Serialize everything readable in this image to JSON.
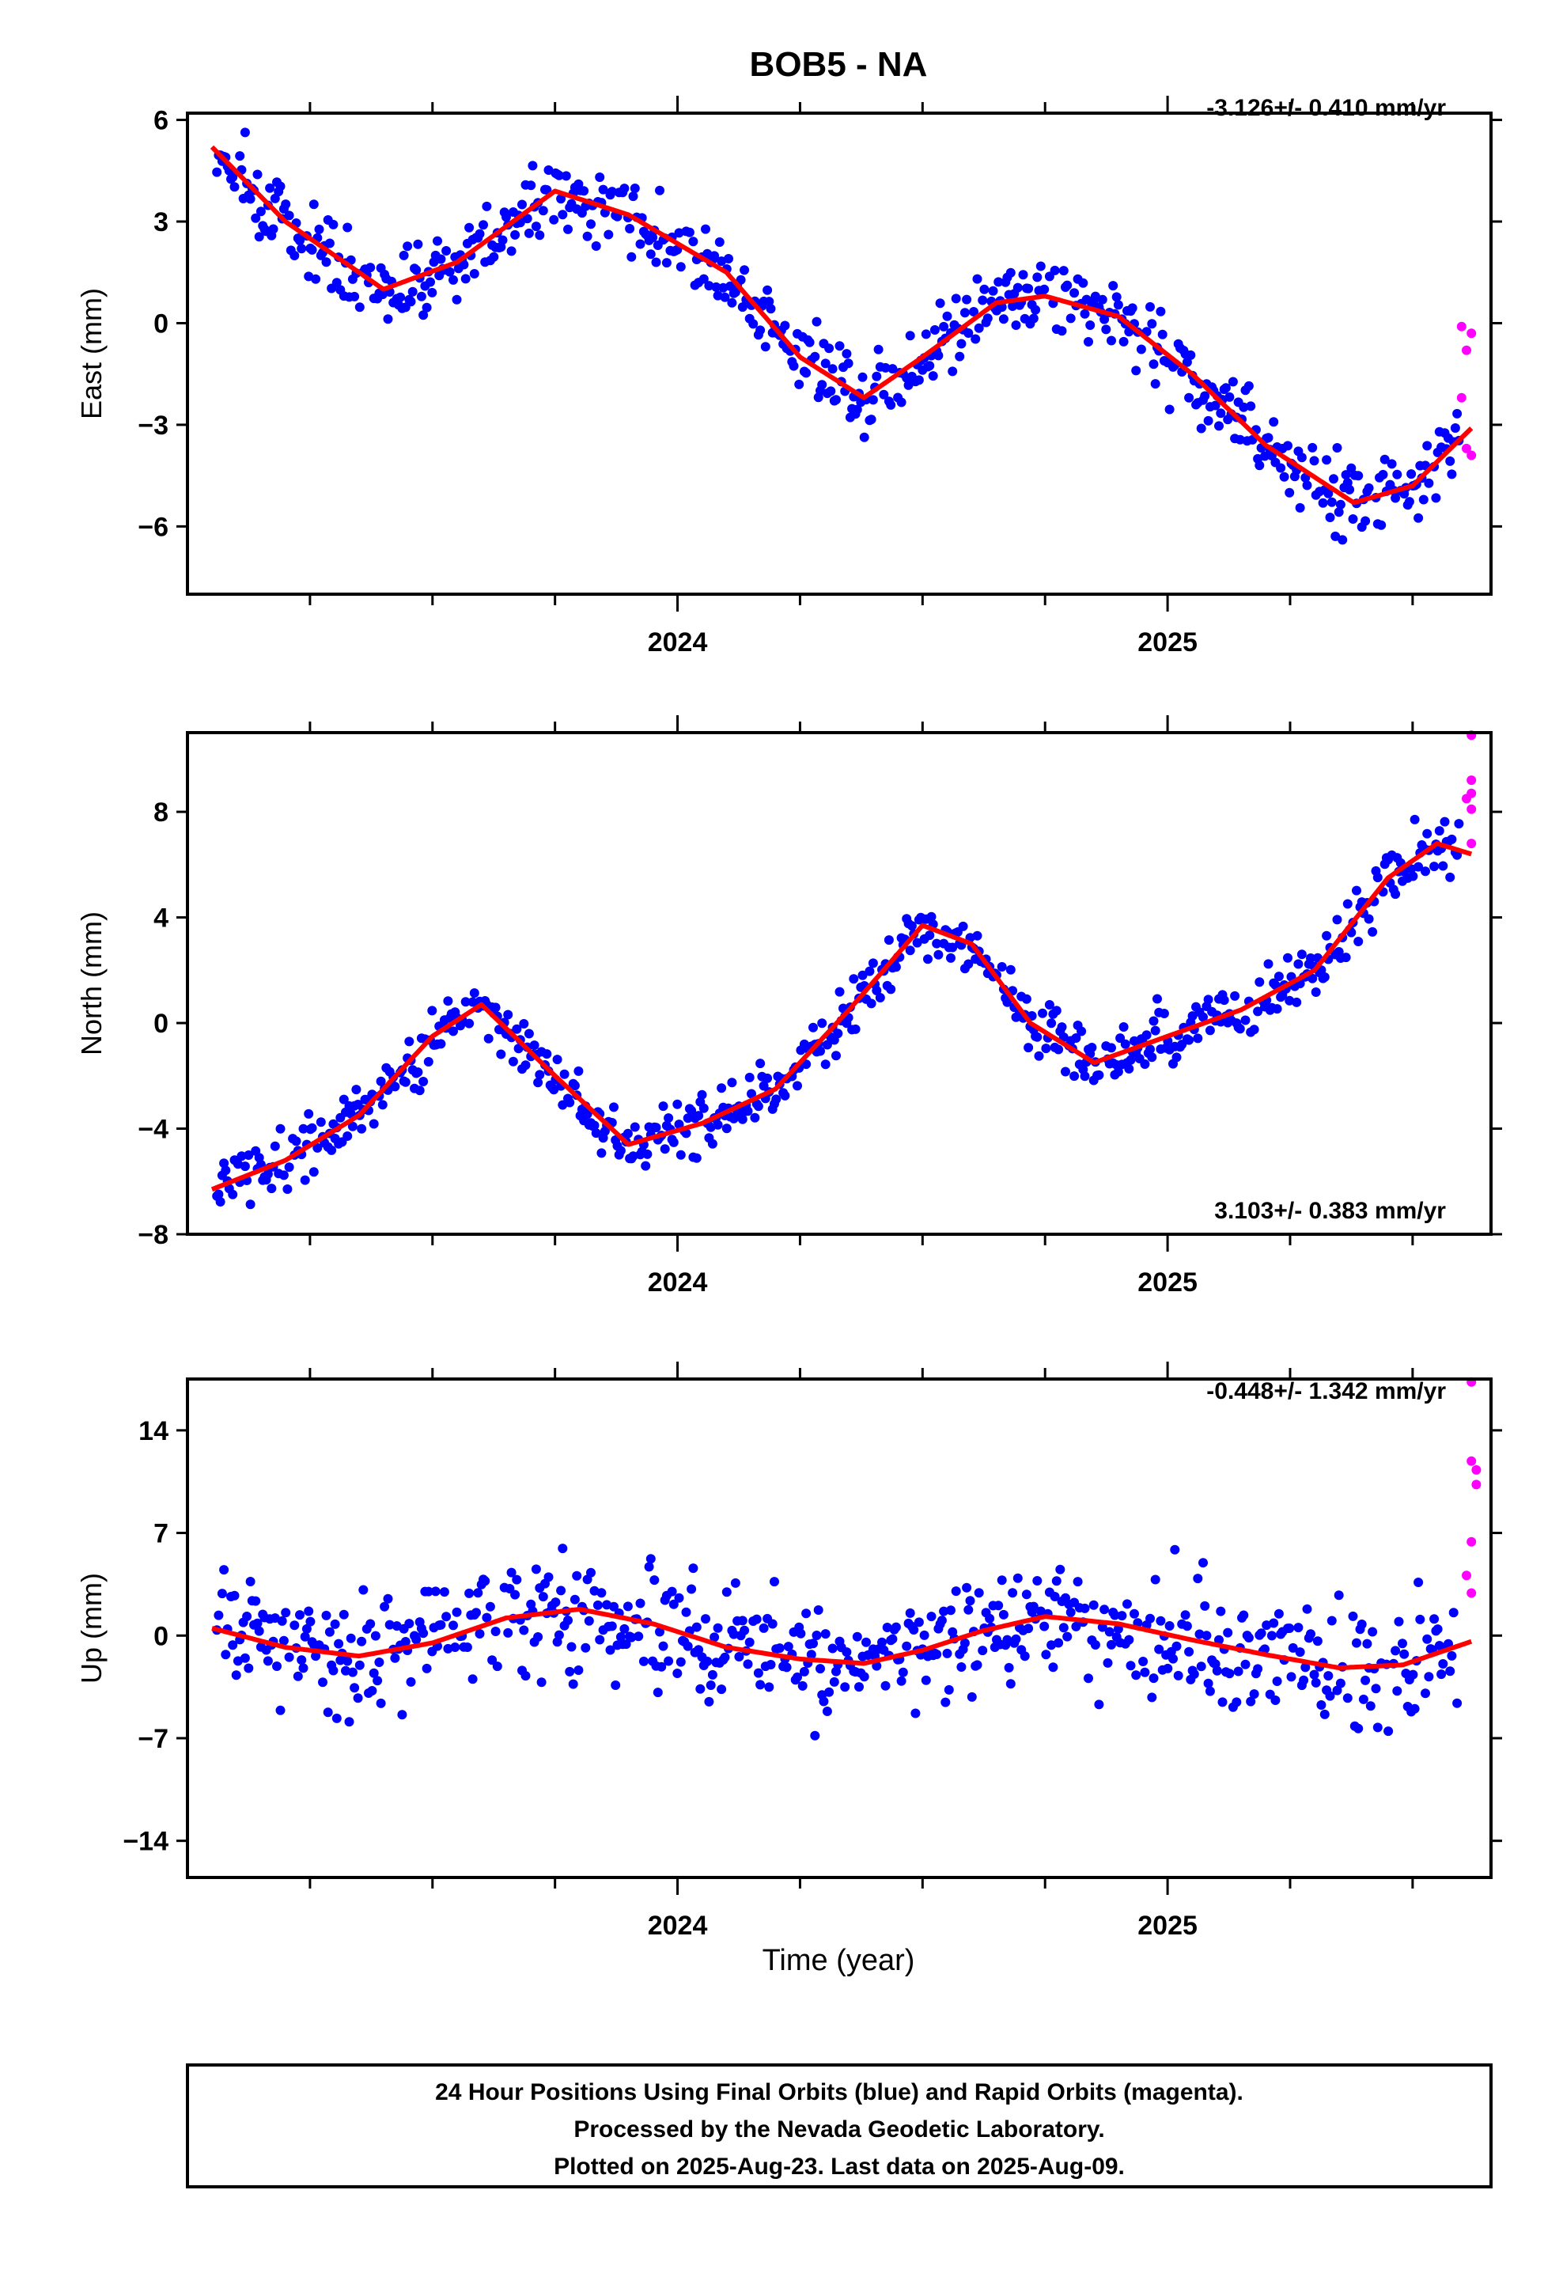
{
  "figure": {
    "title": "BOB5 - NA",
    "footer": [
      "24 Hour Positions Using Final Orbits (blue) and Rapid Orbits (magenta).",
      "Processed by the Nevada Geodetic Laboratory.",
      "Plotted on 2025-Aug-23. Last data on 2025-Aug-09."
    ],
    "xlabel": "Time (year)"
  },
  "colors": {
    "final": "#0000ff",
    "rapid": "#ff00ff",
    "model": "#ff0000",
    "frame": "#000000"
  },
  "chart_data": [
    {
      "type": "scatter",
      "ylabel": "East (mm)",
      "rate_label": "-3.126+/- 0.410 mm/yr",
      "xlim": [
        2023.0,
        2025.66
      ],
      "ylim": [
        -8.0,
        6.2
      ],
      "yticks": [
        -6,
        -3,
        0,
        3,
        6
      ],
      "xticks": [
        "2024",
        "2025"
      ],
      "model": {
        "x": [
          2023.05,
          2023.2,
          2023.4,
          2023.55,
          2023.75,
          2023.9,
          2024.1,
          2024.25,
          2024.38,
          2024.5,
          2024.65,
          2024.75,
          2024.9,
          2025.05,
          2025.2,
          2025.38,
          2025.5,
          2025.62
        ],
        "y": [
          5.2,
          3.0,
          1.0,
          1.8,
          3.9,
          3.2,
          1.5,
          -1.0,
          -2.2,
          -1.0,
          0.6,
          0.8,
          0.2,
          -1.5,
          -3.6,
          -5.3,
          -4.8,
          -3.1
        ]
      },
      "rapid": {
        "x": [
          2025.6,
          2025.61,
          2025.62,
          2025.6,
          2025.61,
          2025.62
        ],
        "y": [
          -0.1,
          -0.8,
          -0.3,
          -2.2,
          -3.7,
          -3.9
        ]
      }
    },
    {
      "type": "scatter",
      "ylabel": "North (mm)",
      "rate_label": "3.103+/- 0.383 mm/yr",
      "xlim": [
        2023.0,
        2025.66
      ],
      "ylim": [
        -8.0,
        11.0
      ],
      "yticks": [
        -8,
        -4,
        0,
        4,
        8
      ],
      "xticks": [
        "2024",
        "2025"
      ],
      "model": {
        "x": [
          2023.05,
          2023.2,
          2023.35,
          2023.5,
          2023.6,
          2023.75,
          2023.9,
          2024.05,
          2024.2,
          2024.35,
          2024.5,
          2024.6,
          2024.72,
          2024.85,
          2025.0,
          2025.15,
          2025.3,
          2025.45,
          2025.55,
          2025.62
        ],
        "y": [
          -6.3,
          -5.2,
          -3.5,
          -0.5,
          0.7,
          -2.0,
          -4.6,
          -3.8,
          -2.5,
          0.5,
          3.7,
          3.0,
          0.0,
          -1.5,
          -0.5,
          0.5,
          2.0,
          5.5,
          6.8,
          6.4
        ]
      },
      "rapid": {
        "x": [
          2025.62,
          2025.62,
          2025.62,
          2025.61,
          2025.62,
          2025.62
        ],
        "y": [
          10.9,
          9.2,
          8.7,
          8.5,
          8.1,
          6.8
        ]
      }
    },
    {
      "type": "scatter",
      "ylabel": "Up (mm)",
      "rate_label": "-0.448+/- 1.342 mm/yr",
      "xlim": [
        2023.0,
        2025.66
      ],
      "ylim": [
        -16.5,
        17.5
      ],
      "yticks": [
        -14,
        -7,
        0,
        7,
        14
      ],
      "xticks": [
        "2024",
        "2025"
      ],
      "model": {
        "x": [
          2023.05,
          2023.2,
          2023.35,
          2023.5,
          2023.65,
          2023.8,
          2023.95,
          2024.1,
          2024.25,
          2024.38,
          2024.5,
          2024.62,
          2024.75,
          2024.9,
          2025.05,
          2025.2,
          2025.35,
          2025.48,
          2025.62
        ],
        "y": [
          0.5,
          -0.8,
          -1.4,
          -0.5,
          1.2,
          1.8,
          0.8,
          -0.8,
          -1.6,
          -1.9,
          -1.0,
          0.3,
          1.3,
          0.8,
          -0.3,
          -1.3,
          -2.2,
          -2.0,
          -0.4
        ]
      },
      "rapid": {
        "x": [
          2025.62,
          2025.62,
          2025.63,
          2025.63,
          2025.62,
          2025.61,
          2025.62
        ],
        "y": [
          17.3,
          11.9,
          11.3,
          10.3,
          6.4,
          4.1,
          2.9
        ]
      }
    }
  ]
}
